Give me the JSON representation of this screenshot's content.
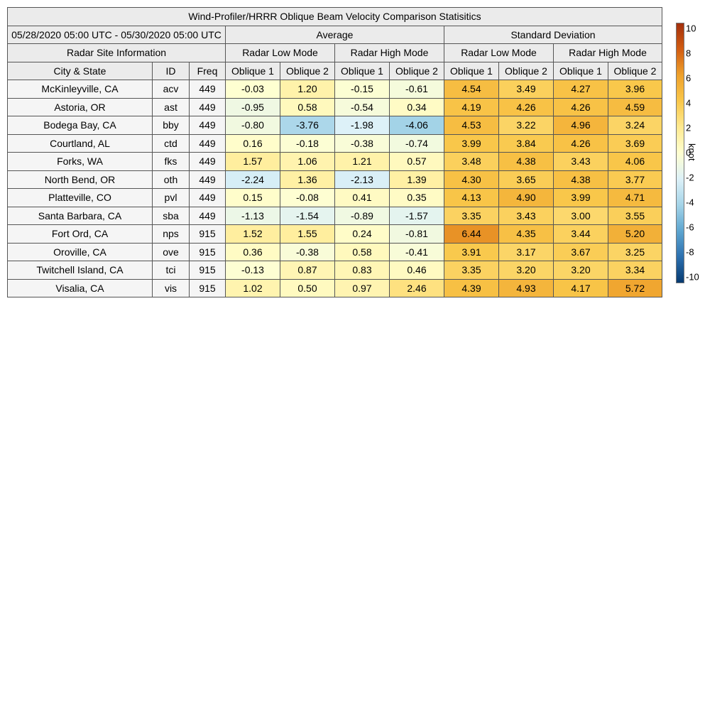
{
  "chart_data": {
    "type": "table",
    "title": "Wind-Profiler/HRRR Oblique Beam Velocity Comparison Statisitics",
    "period": "05/28/2020 05:00 UTC - 05/30/2020 05:00 UTC",
    "groups": [
      "Average",
      "Standard Deviation"
    ],
    "info_header": "Radar Site Information",
    "modes": [
      "Radar Low Mode",
      "Radar High Mode",
      "Radar Low Mode",
      "Radar High Mode"
    ],
    "columns": [
      "City & State",
      "ID",
      "Freq",
      "Oblique 1",
      "Oblique 2",
      "Oblique 1",
      "Oblique 2",
      "Oblique 1",
      "Oblique 2",
      "Oblique 1",
      "Oblique 2"
    ],
    "rows": [
      {
        "city": "McKinleyville, CA",
        "id": "acv",
        "freq": "449",
        "values": [
          "-0.03",
          "1.20",
          "-0.15",
          "-0.61",
          "4.54",
          "3.49",
          "4.27",
          "3.96"
        ]
      },
      {
        "city": "Astoria, OR",
        "id": "ast",
        "freq": "449",
        "values": [
          "-0.95",
          "0.58",
          "-0.54",
          "0.34",
          "4.19",
          "4.26",
          "4.26",
          "4.59"
        ]
      },
      {
        "city": "Bodega Bay, CA",
        "id": "bby",
        "freq": "449",
        "values": [
          "-0.80",
          "-3.76",
          "-1.98",
          "-4.06",
          "4.53",
          "3.22",
          "4.96",
          "3.24"
        ]
      },
      {
        "city": "Courtland, AL",
        "id": "ctd",
        "freq": "449",
        "values": [
          "0.16",
          "-0.18",
          "-0.38",
          "-0.74",
          "3.99",
          "3.84",
          "4.26",
          "3.69"
        ]
      },
      {
        "city": "Forks, WA",
        "id": "fks",
        "freq": "449",
        "values": [
          "1.57",
          "1.06",
          "1.21",
          "0.57",
          "3.48",
          "4.38",
          "3.43",
          "4.06"
        ]
      },
      {
        "city": "North Bend, OR",
        "id": "oth",
        "freq": "449",
        "values": [
          "-2.24",
          "1.36",
          "-2.13",
          "1.39",
          "4.30",
          "3.65",
          "4.38",
          "3.77"
        ]
      },
      {
        "city": "Platteville, CO",
        "id": "pvl",
        "freq": "449",
        "values": [
          "0.15",
          "-0.08",
          "0.41",
          "0.35",
          "4.13",
          "4.90",
          "3.99",
          "4.71"
        ]
      },
      {
        "city": "Santa Barbara, CA",
        "id": "sba",
        "freq": "449",
        "values": [
          "-1.13",
          "-1.54",
          "-0.89",
          "-1.57",
          "3.35",
          "3.43",
          "3.00",
          "3.55"
        ]
      },
      {
        "city": "Fort Ord, CA",
        "id": "nps",
        "freq": "915",
        "values": [
          "1.52",
          "1.55",
          "0.24",
          "-0.81",
          "6.44",
          "4.35",
          "3.44",
          "5.20"
        ]
      },
      {
        "city": "Oroville, CA",
        "id": "ove",
        "freq": "915",
        "values": [
          "0.36",
          "-0.38",
          "0.58",
          "-0.41",
          "3.91",
          "3.17",
          "3.67",
          "3.25"
        ]
      },
      {
        "city": "Twitchell Island, CA",
        "id": "tci",
        "freq": "915",
        "values": [
          "-0.13",
          "0.87",
          "0.83",
          "0.46",
          "3.35",
          "3.20",
          "3.20",
          "3.34"
        ]
      },
      {
        "city": "Visalia, CA",
        "id": "vis",
        "freq": "915",
        "values": [
          "1.02",
          "0.50",
          "0.97",
          "2.46",
          "4.39",
          "4.93",
          "4.17",
          "5.72"
        ]
      }
    ],
    "colorbar": {
      "label": "knot",
      "range": [
        -10,
        10
      ],
      "ticks": [
        "10",
        "8",
        "6",
        "4",
        "2",
        "0",
        "-2",
        "-4",
        "-6",
        "-8",
        "-10"
      ],
      "colors": [
        "#063a70",
        "#2d71b0",
        "#5ea6d0",
        "#a5d4e8",
        "#ddf1f8",
        "#ffffd0",
        "#ffe990",
        "#f9c74a",
        "#eea12c",
        "#d25d12",
        "#a3300c"
      ]
    }
  }
}
